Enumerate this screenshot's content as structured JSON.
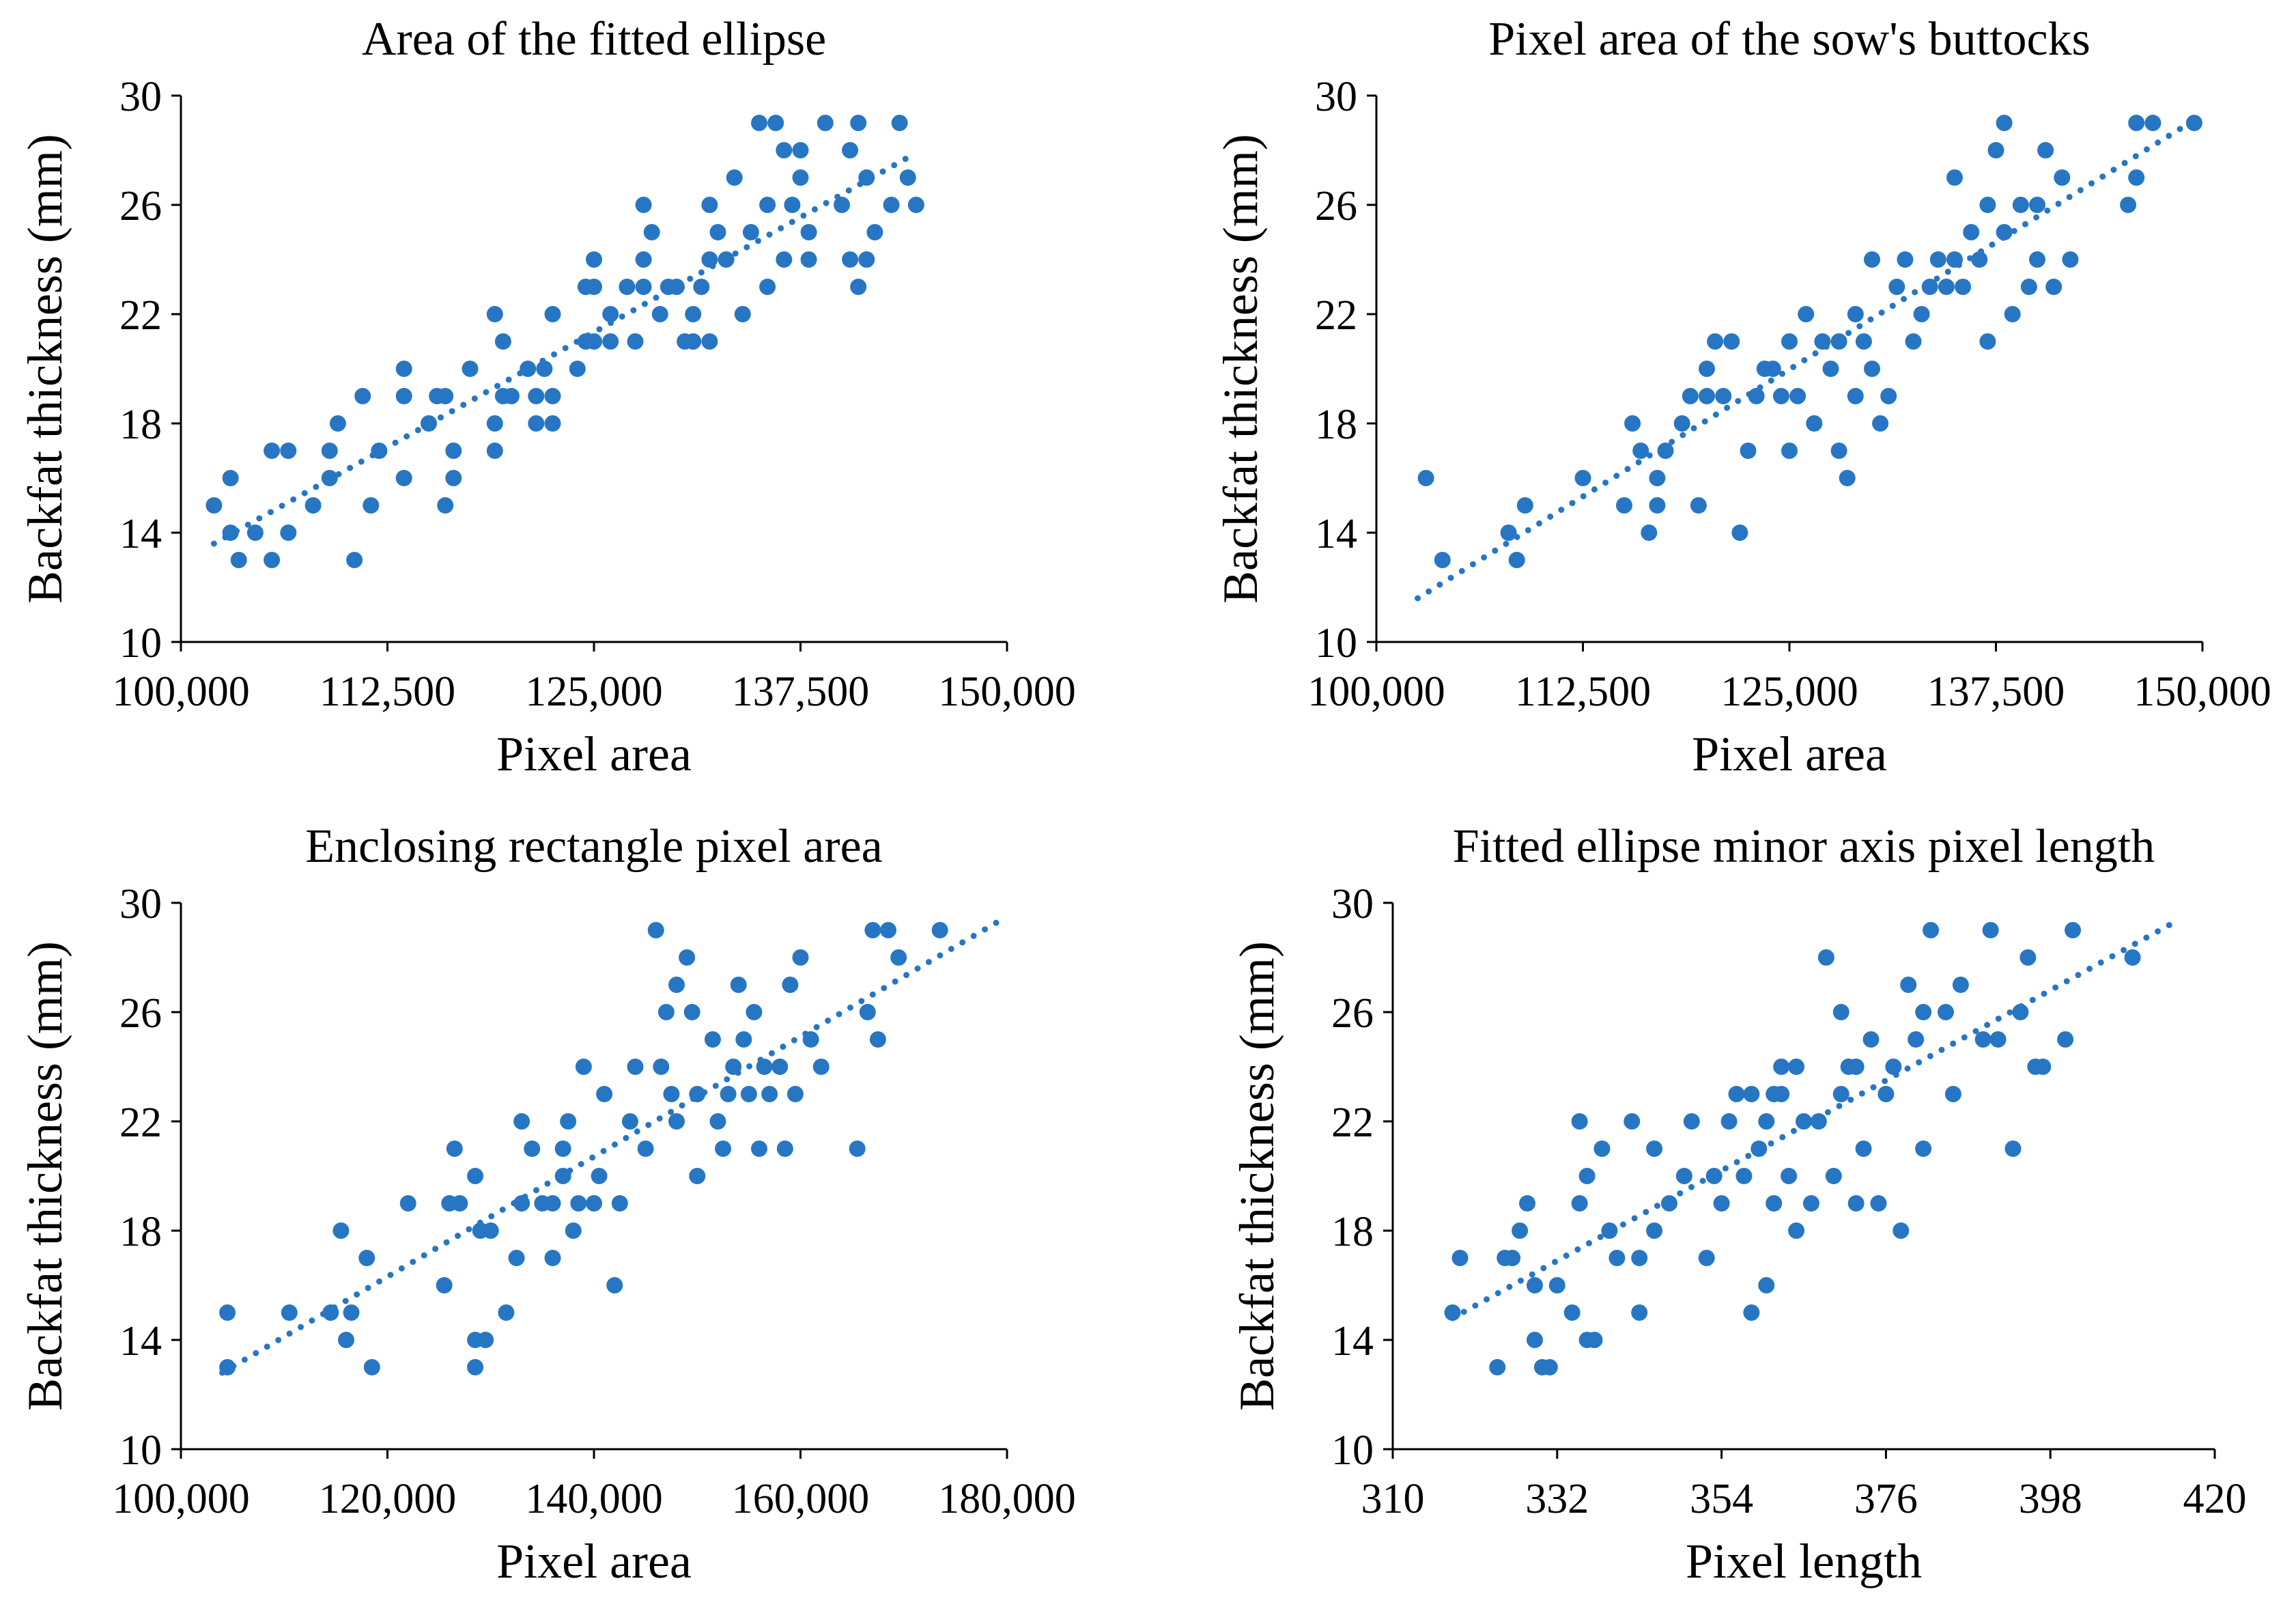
{
  "figure": {
    "marker_color": "#2776C4",
    "trend_color": "#2776C4"
  },
  "chart_data": [
    {
      "type": "scatter",
      "title": "Area of the fitted ellipse",
      "xlabel": "Pixel area",
      "ylabel": "Backfat thickness (mm)",
      "xlim": [
        100000,
        150000
      ],
      "ylim": [
        10,
        30
      ],
      "xticks": [
        100000,
        112500,
        125000,
        137500,
        150000
      ],
      "xtick_labels": [
        "100,000",
        "112,500",
        "125,000",
        "137,500",
        "150,000"
      ],
      "yticks": [
        10,
        14,
        18,
        22,
        26,
        30
      ],
      "ytick_labels": [
        "10",
        "14",
        "18",
        "22",
        "26",
        "30"
      ],
      "trendline": [
        [
          102000,
          13.6
        ],
        [
          144500,
          27.9
        ]
      ],
      "x": [
        102000,
        103000,
        103000,
        103500,
        104500,
        105500,
        105500,
        106500,
        106500,
        108000,
        109000,
        109000,
        109500,
        110500,
        111000,
        111500,
        112000,
        113500,
        113500,
        113500,
        115000,
        115500,
        116000,
        116000,
        116500,
        116500,
        117500,
        119000,
        119000,
        119000,
        119500,
        119500,
        120000,
        121000,
        121500,
        121500,
        122000,
        122500,
        122500,
        122500,
        124000,
        124500,
        124500,
        125000,
        125000,
        125000,
        126000,
        126000,
        127000,
        127500,
        128000,
        128000,
        128000,
        128500,
        129000,
        129500,
        130000,
        130500,
        131000,
        131000,
        131500,
        132000,
        132000,
        132000,
        132500,
        133000,
        133500,
        134000,
        134500,
        135000,
        135500,
        135500,
        136000,
        136500,
        136500,
        137000,
        137500,
        137500,
        138000,
        138000,
        139000,
        140000,
        140500,
        140500,
        141000,
        141000,
        141500,
        141500,
        142000,
        143000,
        143500,
        144000,
        144500
      ],
      "y": [
        15,
        14,
        16,
        13,
        14,
        17,
        13,
        14,
        17,
        15,
        16,
        17,
        18,
        13,
        19,
        15,
        17,
        20,
        19,
        16,
        18,
        19,
        15,
        19,
        16,
        17,
        20,
        22,
        18,
        17,
        19,
        21,
        19,
        20,
        19,
        18,
        20,
        22,
        19,
        18,
        20,
        21,
        23,
        21,
        24,
        23,
        21,
        22,
        23,
        21,
        26,
        24,
        23,
        25,
        22,
        23,
        23,
        21,
        21,
        22,
        23,
        24,
        26,
        21,
        25,
        24,
        27,
        22,
        25,
        29,
        23,
        26,
        29,
        28,
        24,
        26,
        27,
        28,
        25,
        24,
        29,
        26,
        24,
        28,
        23,
        29,
        27,
        24,
        25,
        26,
        29,
        27,
        26
      ]
    },
    {
      "type": "scatter",
      "title": "Pixel area of the sow's buttocks",
      "xlabel": "Pixel area",
      "ylabel": "Backfat thickness (mm)",
      "xlim": [
        100000,
        150000
      ],
      "ylim": [
        10,
        30
      ],
      "xticks": [
        100000,
        112500,
        125000,
        137500,
        150000
      ],
      "xtick_labels": [
        "100,000",
        "112,500",
        "125,000",
        "137,500",
        "150,000"
      ],
      "yticks": [
        10,
        14,
        18,
        22,
        26,
        30
      ],
      "ytick_labels": [
        "10",
        "14",
        "18",
        "22",
        "26",
        "30"
      ],
      "trendline": [
        [
          102500,
          11.6
        ],
        [
          149500,
          29.1
        ]
      ],
      "x": [
        103000,
        104000,
        108000,
        108500,
        109000,
        112500,
        115000,
        115500,
        116000,
        116500,
        117000,
        117000,
        117500,
        118500,
        119000,
        119500,
        120000,
        120000,
        120500,
        121000,
        121500,
        122000,
        122500,
        123000,
        123500,
        124000,
        124500,
        125000,
        125000,
        125500,
        126000,
        126500,
        127000,
        127500,
        128000,
        128000,
        128500,
        129000,
        129000,
        129500,
        130000,
        130000,
        130500,
        131000,
        131500,
        132000,
        132500,
        133000,
        133500,
        134000,
        134500,
        135000,
        135000,
        135500,
        136000,
        136500,
        137000,
        137000,
        137500,
        138000,
        138000,
        138500,
        139000,
        139500,
        140000,
        140000,
        140500,
        141000,
        141500,
        142000,
        145500,
        146000,
        146000,
        147000,
        149500
      ],
      "y": [
        16,
        13,
        14,
        13,
        15,
        16,
        15,
        18,
        17,
        14,
        15,
        16,
        17,
        18,
        19,
        15,
        19,
        20,
        21,
        19,
        21,
        14,
        17,
        19,
        20,
        20,
        19,
        21,
        17,
        19,
        22,
        18,
        21,
        20,
        21,
        17,
        16,
        19,
        22,
        21,
        24,
        20,
        18,
        19,
        23,
        24,
        21,
        22,
        23,
        24,
        23,
        24,
        27,
        23,
        25,
        24,
        21,
        26,
        28,
        29,
        25,
        22,
        26,
        23,
        24,
        26,
        28,
        23,
        27,
        24,
        26,
        27,
        29,
        29,
        29
      ]
    },
    {
      "type": "scatter",
      "title": "Enclosing rectangle pixel area",
      "xlabel": "Pixel area",
      "ylabel": "Backfat thickness (mm)",
      "xlim": [
        100000,
        180000
      ],
      "ylim": [
        10,
        30
      ],
      "xticks": [
        100000,
        120000,
        140000,
        160000,
        180000
      ],
      "xtick_labels": [
        "100,000",
        "120,000",
        "140,000",
        "160,000",
        "180,000"
      ],
      "yticks": [
        10,
        14,
        18,
        22,
        26,
        30
      ],
      "ytick_labels": [
        "10",
        "14",
        "18",
        "22",
        "26",
        "30"
      ],
      "trendline": [
        [
          104000,
          12.8
        ],
        [
          180000,
          29.5
        ]
      ],
      "x": [
        104500,
        104500,
        110500,
        114500,
        115500,
        116000,
        116500,
        118000,
        118500,
        122000,
        125500,
        126000,
        126500,
        127000,
        128500,
        128500,
        128500,
        129000,
        129500,
        130000,
        131500,
        132500,
        133000,
        133000,
        134000,
        135000,
        136000,
        136000,
        137000,
        137000,
        137500,
        138000,
        138500,
        139000,
        140000,
        140500,
        141000,
        142000,
        142500,
        143500,
        144000,
        145000,
        146000,
        146500,
        147000,
        147500,
        148000,
        148000,
        149000,
        149500,
        150000,
        150000,
        151500,
        152000,
        152500,
        153000,
        153500,
        154000,
        154500,
        155000,
        155500,
        156000,
        156500,
        157000,
        158000,
        158500,
        159000,
        159500,
        160000,
        161000,
        162000,
        165500,
        166500,
        167000,
        167500,
        168500,
        169500,
        173500
      ],
      "y": [
        13,
        15,
        15,
        15,
        18,
        14,
        15,
        17,
        13,
        19,
        16,
        19,
        21,
        19,
        13,
        14,
        20,
        18,
        14,
        18,
        15,
        17,
        22,
        19,
        21,
        19,
        17,
        19,
        21,
        20,
        22,
        18,
        19,
        24,
        19,
        20,
        23,
        16,
        19,
        22,
        24,
        21,
        29,
        24,
        26,
        23,
        22,
        27,
        28,
        26,
        23,
        20,
        25,
        22,
        21,
        23,
        24,
        27,
        25,
        23,
        26,
        21,
        24,
        23,
        24,
        21,
        27,
        23,
        28,
        25,
        24,
        21,
        26,
        29,
        25,
        29,
        28,
        29
      ]
    },
    {
      "type": "scatter",
      "title": "Fitted ellipse minor axis pixel length",
      "xlabel": "Pixel length",
      "ylabel": "Backfat thickness (mm)",
      "xlim": [
        310,
        420
      ],
      "ylim": [
        10,
        30
      ],
      "xticks": [
        310,
        332,
        354,
        376,
        398,
        420
      ],
      "xtick_labels": [
        "310",
        "332",
        "354",
        "376",
        "398",
        "420"
      ],
      "yticks": [
        10,
        14,
        18,
        22,
        26,
        30
      ],
      "ytick_labels": [
        "10",
        "14",
        "18",
        "22",
        "26",
        "30"
      ],
      "trendline": [
        [
          318,
          14.8
        ],
        [
          414,
          29.2
        ]
      ],
      "x": [
        318,
        319,
        324,
        325,
        326,
        327,
        328,
        329,
        329,
        330,
        331,
        332,
        334,
        335,
        335,
        336,
        336,
        337,
        338,
        339,
        340,
        342,
        343,
        343,
        345,
        345,
        347,
        349,
        350,
        352,
        353,
        354,
        355,
        356,
        357,
        358,
        358,
        359,
        360,
        360,
        361,
        361,
        362,
        362,
        363,
        364,
        364,
        365,
        366,
        367,
        368,
        369,
        370,
        370,
        371,
        372,
        372,
        373,
        374,
        375,
        376,
        377,
        378,
        379,
        380,
        381,
        381,
        382,
        384,
        385,
        386,
        389,
        390,
        391,
        393,
        394,
        395,
        396,
        397,
        400,
        401,
        409
      ],
      "y": [
        15,
        17,
        13,
        17,
        17,
        18,
        19,
        16,
        14,
        13,
        13,
        16,
        15,
        22,
        19,
        14,
        20,
        14,
        21,
        18,
        17,
        22,
        17,
        15,
        21,
        18,
        19,
        20,
        22,
        17,
        20,
        19,
        22,
        23,
        20,
        23,
        15,
        21,
        16,
        22,
        19,
        23,
        24,
        23,
        20,
        24,
        18,
        22,
        19,
        22,
        28,
        20,
        23,
        26,
        24,
        19,
        24,
        21,
        25,
        19,
        23,
        24,
        18,
        27,
        25,
        26,
        21,
        29,
        26,
        23,
        27,
        25,
        29,
        25,
        21,
        26,
        28,
        24,
        24,
        25,
        29,
        28
      ]
    }
  ]
}
